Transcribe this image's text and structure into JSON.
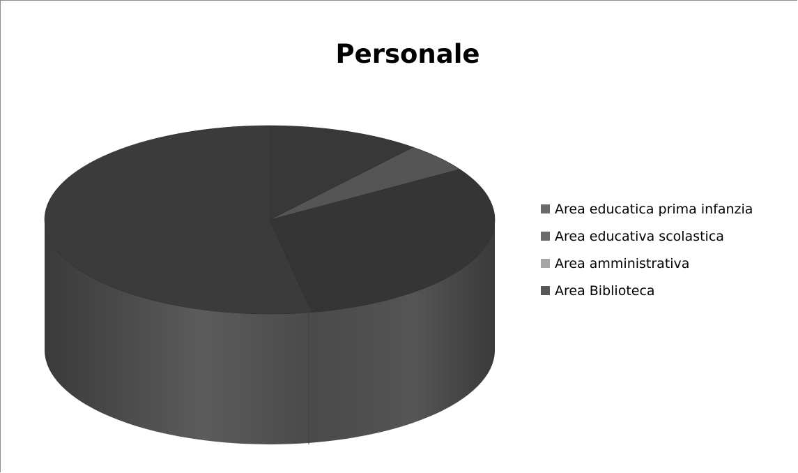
{
  "chart_data": {
    "type": "pie",
    "title": "Personale",
    "style": "3d",
    "legend_position": "right",
    "categories": [
      "Area educatica prima infanzia",
      "Area educativa scolastica",
      "Area amministrativa",
      "Area Biblioteca"
    ],
    "values": [
      11,
      5,
      31,
      53
    ],
    "colors": [
      "#383838",
      "#555555",
      "#a6a6a6",
      "#3c3c3c"
    ]
  }
}
